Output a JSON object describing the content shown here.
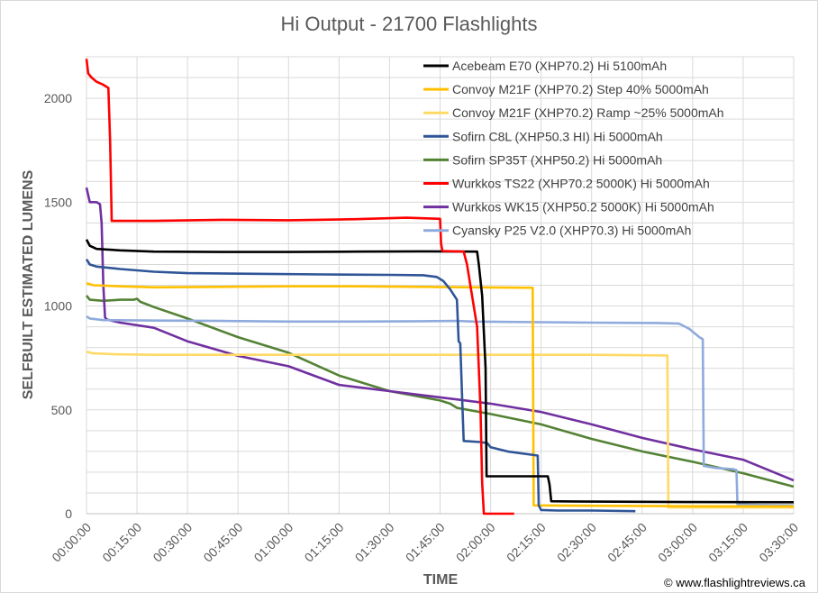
{
  "chart_data": {
    "type": "line",
    "title": "Hi Output - 21700 Flashlights",
    "xlabel": "TIME",
    "ylabel": "SELFBUILT ESTIMATED LUMENS",
    "x_unit": "minutes",
    "xlim": [
      0,
      210
    ],
    "ylim": [
      0,
      2200
    ],
    "x_ticks": [
      0,
      15,
      30,
      45,
      60,
      75,
      90,
      105,
      120,
      135,
      150,
      165,
      180,
      195,
      210
    ],
    "x_tick_labels": [
      "00:00:00",
      "00:15:00",
      "00:30:00",
      "00:45:00",
      "01:00:00",
      "01:15:00",
      "01:30:00",
      "01:45:00",
      "02:00:00",
      "02:15:00",
      "02:30:00",
      "02:45:00",
      "03:00:00",
      "03:15:00",
      "03:30:00"
    ],
    "y_ticks": [
      0,
      500,
      1000,
      1500,
      2000
    ],
    "y_tick_labels": [
      "0",
      "500",
      "1000",
      "1500",
      "2000"
    ],
    "grid": "both",
    "legend": "top-right",
    "copyright": "© www.flashlightreviews.ca",
    "series": [
      {
        "name": "Acebeam E70 (XHP70.2) Hi 5100mAh",
        "color": "#000000",
        "points": [
          [
            0,
            1320
          ],
          [
            1,
            1290
          ],
          [
            3,
            1275
          ],
          [
            10,
            1268
          ],
          [
            20,
            1262
          ],
          [
            40,
            1260
          ],
          [
            60,
            1260
          ],
          [
            80,
            1262
          ],
          [
            100,
            1263
          ],
          [
            116,
            1262
          ],
          [
            116.5,
            1200
          ],
          [
            117.5,
            1050
          ],
          [
            118.5,
            700
          ],
          [
            118.8,
            180
          ],
          [
            125,
            180
          ],
          [
            137,
            180
          ],
          [
            137.5,
            140
          ],
          [
            138,
            60
          ],
          [
            150,
            58
          ],
          [
            180,
            56
          ],
          [
            210,
            55
          ]
        ]
      },
      {
        "name": "Convoy M21F (XHP70.2) Step 40% 5000mAh",
        "color": "#ffc000",
        "points": [
          [
            0,
            1110
          ],
          [
            2,
            1100
          ],
          [
            10,
            1095
          ],
          [
            20,
            1090
          ],
          [
            40,
            1092
          ],
          [
            60,
            1095
          ],
          [
            80,
            1095
          ],
          [
            100,
            1092
          ],
          [
            115,
            1090
          ],
          [
            132.5,
            1088
          ],
          [
            132.8,
            40
          ],
          [
            150,
            38
          ],
          [
            180,
            36
          ],
          [
            210,
            35
          ]
        ]
      },
      {
        "name": "Convoy M21F (XHP70.2) Ramp ~25% 5000mAh",
        "color": "#ffd966",
        "points": [
          [
            0,
            780
          ],
          [
            2,
            772
          ],
          [
            8,
            768
          ],
          [
            20,
            765
          ],
          [
            50,
            765
          ],
          [
            100,
            765
          ],
          [
            150,
            765
          ],
          [
            172.5,
            762
          ],
          [
            172.8,
            30
          ],
          [
            190,
            30
          ],
          [
            210,
            30
          ]
        ]
      },
      {
        "name": "Sofirn C8L (XHP50.3 HI) Hi 5000mAh",
        "color": "#2f5597",
        "points": [
          [
            0,
            1225
          ],
          [
            1,
            1200
          ],
          [
            3,
            1190
          ],
          [
            10,
            1178
          ],
          [
            20,
            1165
          ],
          [
            30,
            1158
          ],
          [
            50,
            1155
          ],
          [
            70,
            1152
          ],
          [
            90,
            1150
          ],
          [
            100,
            1148
          ],
          [
            104,
            1140
          ],
          [
            106,
            1120
          ],
          [
            108,
            1080
          ],
          [
            110,
            1030
          ],
          [
            110.5,
            830
          ],
          [
            111,
            820
          ],
          [
            111.5,
            580
          ],
          [
            112,
            350
          ],
          [
            117,
            345
          ],
          [
            119,
            340
          ],
          [
            120,
            320
          ],
          [
            125,
            300
          ],
          [
            134,
            280
          ],
          [
            134.3,
            40
          ],
          [
            135,
            18
          ],
          [
            140,
            15
          ],
          [
            150,
            15
          ],
          [
            163,
            12
          ]
        ]
      },
      {
        "name": "Sofirn SP35T (XHP50.2) Hi 5000mAh",
        "color": "#548235",
        "points": [
          [
            0,
            1050
          ],
          [
            1,
            1030
          ],
          [
            5,
            1025
          ],
          [
            10,
            1030
          ],
          [
            14,
            1030
          ],
          [
            15,
            1035
          ],
          [
            16,
            1020
          ],
          [
            20,
            995
          ],
          [
            30,
            940
          ],
          [
            45,
            850
          ],
          [
            60,
            775
          ],
          [
            75,
            665
          ],
          [
            90,
            590
          ],
          [
            100,
            560
          ],
          [
            105,
            545
          ],
          [
            108,
            530
          ],
          [
            110,
            510
          ],
          [
            120,
            480
          ],
          [
            135,
            430
          ],
          [
            150,
            360
          ],
          [
            165,
            300
          ],
          [
            180,
            250
          ],
          [
            195,
            195
          ],
          [
            210,
            130
          ]
        ]
      },
      {
        "name": "Wurkkos TS22 (XHP70.2 5000K) Hi 5000mAh",
        "color": "#ff0000",
        "points": [
          [
            0,
            2190
          ],
          [
            0.5,
            2120
          ],
          [
            1.5,
            2100
          ],
          [
            3,
            2080
          ],
          [
            5,
            2065
          ],
          [
            6,
            2055
          ],
          [
            6.5,
            2050
          ],
          [
            7,
            1800
          ],
          [
            7.5,
            1410
          ],
          [
            20,
            1410
          ],
          [
            40,
            1415
          ],
          [
            60,
            1413
          ],
          [
            80,
            1418
          ],
          [
            95,
            1425
          ],
          [
            105,
            1420
          ],
          [
            105.3,
            1300
          ],
          [
            105.7,
            1265
          ],
          [
            112,
            1262
          ],
          [
            113,
            1200
          ],
          [
            114,
            1100
          ],
          [
            116,
            900
          ],
          [
            117,
            500
          ],
          [
            117.5,
            150
          ],
          [
            118,
            0
          ],
          [
            127,
            0
          ]
        ]
      },
      {
        "name": "Wurkkos WK15 (XHP50.2 5000K) Hi 5000mAh",
        "color": "#7030a0",
        "points": [
          [
            0,
            1570
          ],
          [
            1,
            1500
          ],
          [
            3,
            1500
          ],
          [
            4,
            1490
          ],
          [
            4.5,
            1400
          ],
          [
            5,
            1100
          ],
          [
            5.5,
            945
          ],
          [
            6,
            935
          ],
          [
            10,
            920
          ],
          [
            20,
            895
          ],
          [
            30,
            830
          ],
          [
            45,
            760
          ],
          [
            60,
            710
          ],
          [
            75,
            620
          ],
          [
            90,
            590
          ],
          [
            105,
            560
          ],
          [
            120,
            530
          ],
          [
            135,
            490
          ],
          [
            150,
            430
          ],
          [
            165,
            365
          ],
          [
            180,
            310
          ],
          [
            195,
            260
          ],
          [
            210,
            160
          ]
        ]
      },
      {
        "name": "Cyansky P25 V2.0 (XHP70.3) Hi 5000mAh",
        "color": "#8faadc",
        "points": [
          [
            0,
            950
          ],
          [
            1,
            940
          ],
          [
            5,
            932
          ],
          [
            20,
            930
          ],
          [
            40,
            928
          ],
          [
            60,
            925
          ],
          [
            80,
            925
          ],
          [
            100,
            927
          ],
          [
            110,
            928
          ],
          [
            115,
            925
          ],
          [
            135,
            922
          ],
          [
            150,
            920
          ],
          [
            170,
            918
          ],
          [
            176,
            915
          ],
          [
            179,
            890
          ],
          [
            182,
            850
          ],
          [
            183,
            840
          ],
          [
            183.3,
            230
          ],
          [
            187,
            220
          ],
          [
            192,
            215
          ],
          [
            193,
            210
          ],
          [
            193.3,
            45
          ],
          [
            200,
            42
          ],
          [
            210,
            40
          ]
        ]
      }
    ]
  }
}
